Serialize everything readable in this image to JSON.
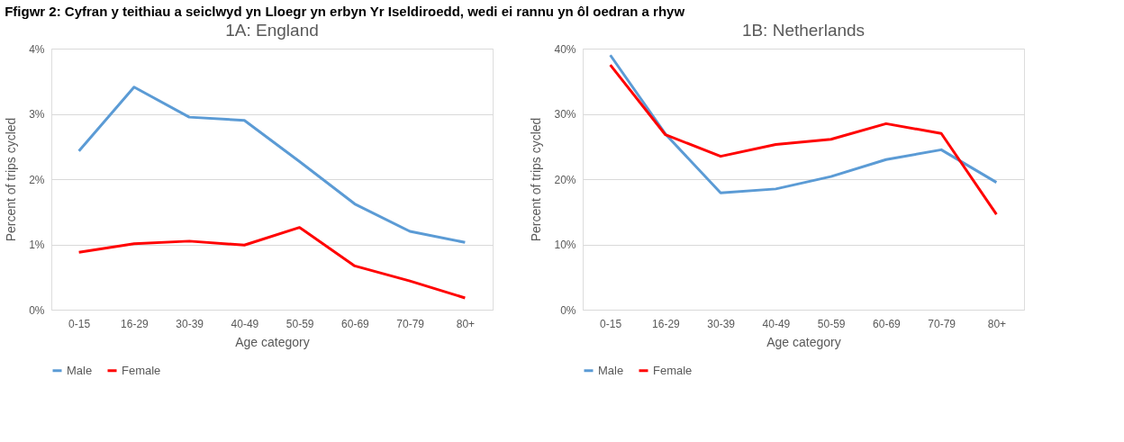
{
  "chart_data": [
    {
      "type": "line",
      "title": "1A: England",
      "annotations": [
        "Ffigwr 2: Cyfran y teithiau a seiclwyd yn Lloegr yn erbyn Yr Iseldiroedd, wedi ei rannu yn ôl oedran a rhyw"
      ],
      "xlabel": "Age category",
      "ylabel": "Percent of trips cycled",
      "categories": [
        "0-15",
        "16-29",
        "30-39",
        "40-49",
        "50-59",
        "60-69",
        "70-79",
        "80+"
      ],
      "series": [
        {
          "name": "Male",
          "color": "#5b9bd5",
          "values": [
            2.43,
            3.41,
            2.95,
            2.9,
            2.27,
            1.62,
            1.2,
            1.03
          ]
        },
        {
          "name": "Female",
          "color": "#ff0000",
          "values": [
            0.88,
            1.01,
            1.05,
            0.99,
            1.26,
            0.67,
            0.44,
            0.18
          ]
        }
      ],
      "ylim": [
        0,
        4
      ],
      "yticks": [
        {
          "value": 0,
          "label": "0%"
        },
        {
          "value": 1,
          "label": "1%"
        },
        {
          "value": 2,
          "label": "2%"
        },
        {
          "value": 3,
          "label": "3%"
        },
        {
          "value": 4,
          "label": "4%"
        }
      ],
      "grid": "y",
      "legend": "bottom",
      "marker": "none",
      "line_style": "solid"
    },
    {
      "type": "line",
      "title": "1B: Netherlands",
      "xlabel": "Age category",
      "ylabel": "Percent of trips cycled",
      "categories": [
        "0-15",
        "16-29",
        "30-39",
        "40-49",
        "50-59",
        "60-69",
        "70-79",
        "80+"
      ],
      "series": [
        {
          "name": "Male",
          "color": "#5b9bd5",
          "values": [
            39.0,
            26.9,
            17.9,
            18.5,
            20.4,
            23.0,
            24.5,
            19.5
          ]
        },
        {
          "name": "Female",
          "color": "#ff0000",
          "values": [
            37.5,
            26.8,
            23.5,
            25.3,
            26.1,
            28.5,
            27.0,
            14.6
          ]
        }
      ],
      "ylim": [
        0,
        40
      ],
      "yticks": [
        {
          "value": 0,
          "label": "0%"
        },
        {
          "value": 10,
          "label": "10%"
        },
        {
          "value": 20,
          "label": "20%"
        },
        {
          "value": 30,
          "label": "30%"
        },
        {
          "value": 40,
          "label": "40%"
        }
      ],
      "grid": "y",
      "legend": "bottom",
      "marker": "none",
      "line_style": "solid"
    }
  ]
}
